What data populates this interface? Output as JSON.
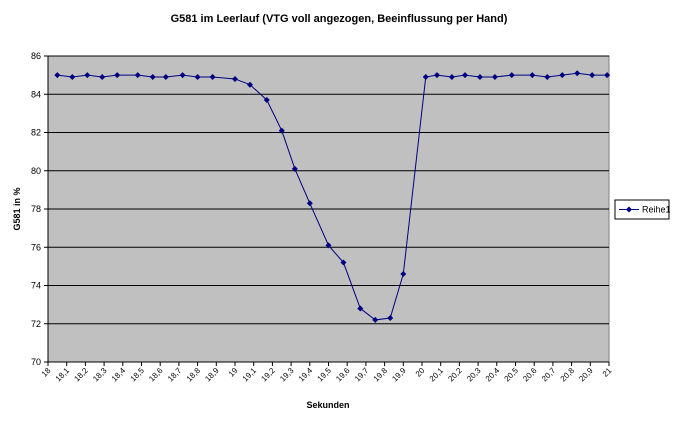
{
  "chart_data": {
    "type": "line",
    "title": "G581 im Leerlauf (VTG voll angezogen, Beeinflussung per Hand)",
    "x_label": "Sekunden",
    "y_label": "G581 in %",
    "x": [
      18.05,
      18.13,
      18.21,
      18.29,
      18.37,
      18.48,
      18.56,
      18.63,
      18.72,
      18.8,
      18.88,
      19.0,
      19.08,
      19.17,
      19.25,
      19.32,
      19.4,
      19.5,
      19.58,
      19.67,
      19.75,
      19.83,
      19.9,
      20.02,
      20.08,
      20.16,
      20.23,
      20.31,
      20.39,
      20.48,
      20.59,
      20.67,
      20.75,
      20.83,
      20.91,
      20.99
    ],
    "series": [
      {
        "name": "Reihe1",
        "color": "#000080",
        "values": [
          85.0,
          84.9,
          85.0,
          84.9,
          85.0,
          85.0,
          84.9,
          84.9,
          85.0,
          84.9,
          84.9,
          84.8,
          84.5,
          83.7,
          82.1,
          80.1,
          78.3,
          76.1,
          75.2,
          72.8,
          72.2,
          72.3,
          74.6,
          84.9,
          85.0,
          84.9,
          85.0,
          84.9,
          84.9,
          85.0,
          85.0,
          84.9,
          85.0,
          85.1,
          85.0,
          85.0
        ]
      }
    ],
    "xlim": [
      18,
      21
    ],
    "xticks": [
      18,
      {
        "value": 18.1,
        "label": "18,1"
      },
      {
        "value": 18.2,
        "label": "18,2"
      },
      {
        "value": 18.3,
        "label": "18,3"
      },
      {
        "value": 18.4,
        "label": "18,4"
      },
      {
        "value": 18.5,
        "label": "18,5"
      },
      {
        "value": 18.6,
        "label": "18,6"
      },
      {
        "value": 18.7,
        "label": "18,7"
      },
      {
        "value": 18.8,
        "label": "18,8"
      },
      {
        "value": 18.9,
        "label": "18,9"
      },
      19,
      {
        "value": 19.1,
        "label": "19,1"
      },
      {
        "value": 19.2,
        "label": "19,2"
      },
      {
        "value": 19.3,
        "label": "19,3"
      },
      {
        "value": 19.4,
        "label": "19,4"
      },
      {
        "value": 19.5,
        "label": "19,5"
      },
      {
        "value": 19.6,
        "label": "19,6"
      },
      {
        "value": 19.7,
        "label": "19,7"
      },
      {
        "value": 19.8,
        "label": "19,8"
      },
      {
        "value": 19.9,
        "label": "19,9"
      },
      20,
      {
        "value": 20.1,
        "label": "20,1"
      },
      {
        "value": 20.2,
        "label": "20,2"
      },
      {
        "value": 20.3,
        "label": "20,3"
      },
      {
        "value": 20.4,
        "label": "20,4"
      },
      {
        "value": 20.5,
        "label": "20,5"
      },
      {
        "value": 20.6,
        "label": "20,6"
      },
      {
        "value": 20.7,
        "label": "20,7"
      },
      {
        "value": 20.8,
        "label": "20,8"
      },
      {
        "value": 20.9,
        "label": "20,9"
      },
      21
    ],
    "ylim": [
      70,
      86
    ],
    "yticks": [
      70,
      72,
      74,
      76,
      78,
      80,
      82,
      84,
      86
    ],
    "grid": true,
    "plot_background": "#c0c0c0",
    "legend": "right"
  }
}
